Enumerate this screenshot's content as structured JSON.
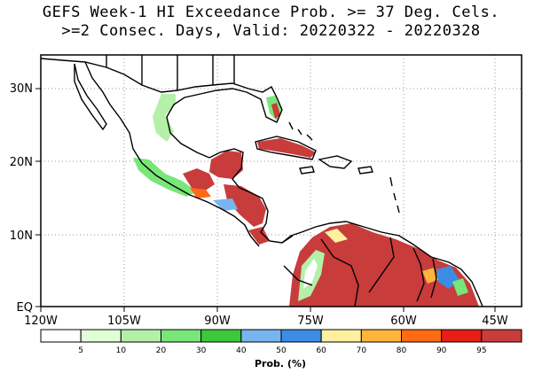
{
  "title_line1": "GEFS Week-1 HI Exceedance Prob. >= 37 Deg. Cels.",
  "title_line2": ">=2 Consec. Days, Valid: 20220322 - 20220328",
  "lon_ticks": [
    "120W",
    "105W",
    "90W",
    "75W",
    "60W",
    "45W"
  ],
  "lat_ticks": [
    "EQ",
    "10N",
    "20N",
    "30N"
  ],
  "colorbar": {
    "unit_label": "Prob. (%)",
    "tick_labels": [
      "5",
      "10",
      "20",
      "30",
      "40",
      "50",
      "60",
      "70",
      "80",
      "90",
      "95"
    ],
    "colors": [
      "#ffffff",
      "#e0ffd6",
      "#b4f0a8",
      "#78e678",
      "#3cc83c",
      "#78b4f0",
      "#3c8ce6",
      "#fff0a0",
      "#ffb43c",
      "#ff6a14",
      "#e61e14",
      "#c83c3c"
    ]
  },
  "map_colors": {
    "land_high": "#c83c3c",
    "coast": "#000000"
  }
}
